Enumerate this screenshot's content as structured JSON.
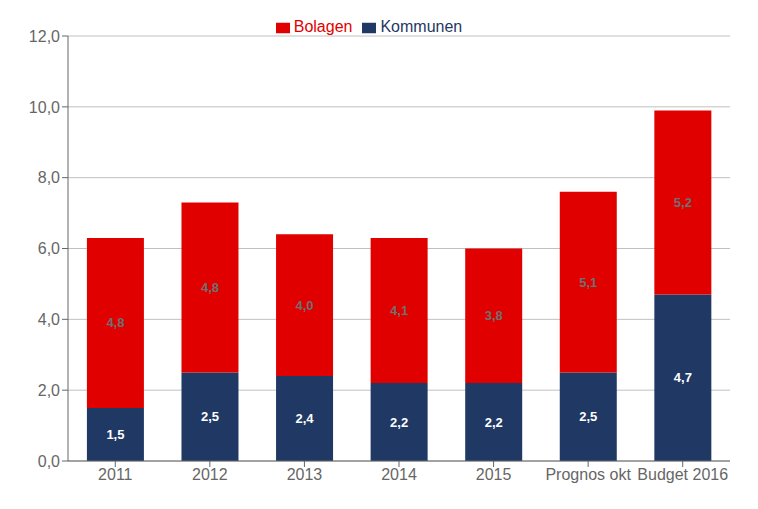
{
  "chart_data": {
    "type": "bar",
    "categories": [
      "2011",
      "2012",
      "2013",
      "2014",
      "2015",
      "Prognos okt",
      "Budget 2016"
    ],
    "series": [
      {
        "name": "Kommunen",
        "color": "#1f3864",
        "values": [
          1.5,
          2.5,
          2.4,
          2.2,
          2.2,
          2.5,
          4.7
        ],
        "value_labels": [
          "1,5",
          "2,5",
          "2,4",
          "2,2",
          "2,2",
          "2,5",
          "4,7"
        ]
      },
      {
        "name": "Bolagen",
        "color": "#e00000",
        "values": [
          4.8,
          4.8,
          4.0,
          4.1,
          3.8,
          5.1,
          5.2
        ],
        "value_labels": [
          "4,8",
          "4,8",
          "4,0",
          "4,1",
          "3,8",
          "5,1",
          "5,2"
        ]
      }
    ],
    "stacked": true,
    "data_labels": true,
    "ylim": [
      0,
      12
    ],
    "yticks": [
      {
        "value": 0,
        "label": "0,0"
      },
      {
        "value": 2,
        "label": "2,0"
      },
      {
        "value": 4,
        "label": "4,0"
      },
      {
        "value": 6,
        "label": "6,0"
      },
      {
        "value": 8,
        "label": "8,0"
      },
      {
        "value": 10,
        "label": "10,0"
      },
      {
        "value": 12,
        "label": "12,0"
      }
    ],
    "grid": true,
    "legend": "top"
  }
}
